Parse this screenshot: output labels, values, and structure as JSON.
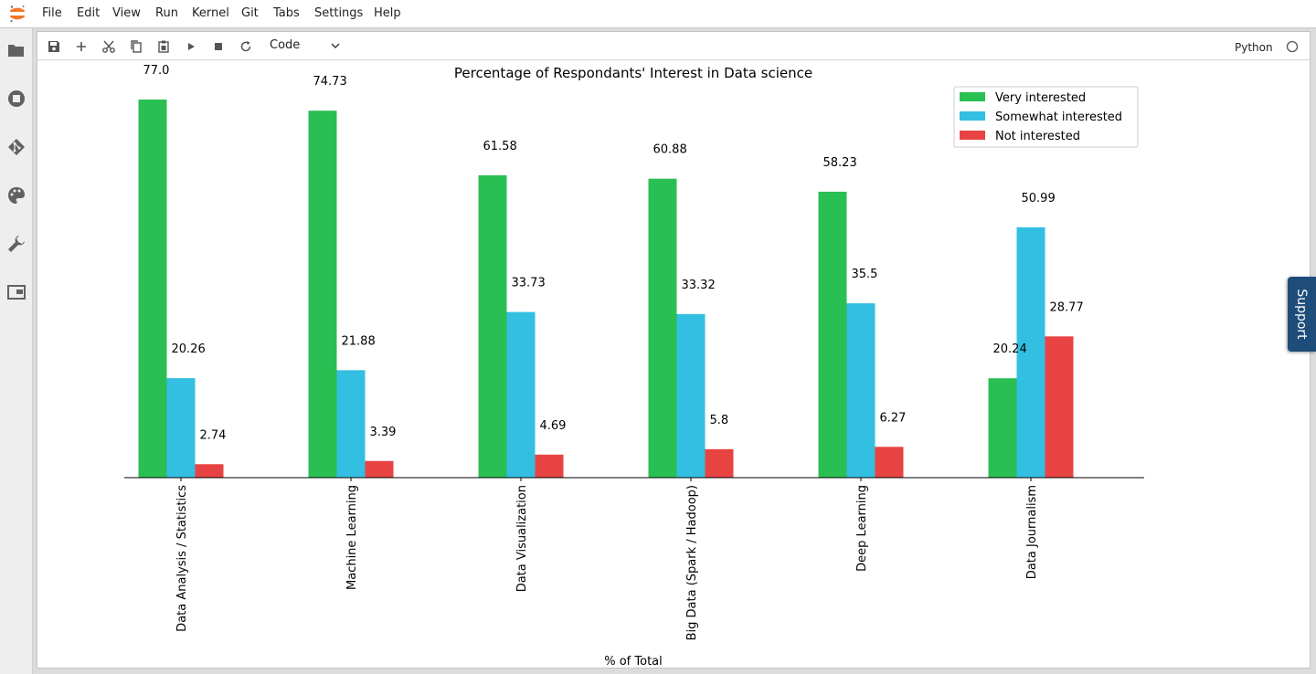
{
  "menu": {
    "items": [
      "File",
      "Edit",
      "View",
      "Run",
      "Kernel",
      "Git",
      "Tabs",
      "Settings",
      "Help"
    ]
  },
  "sidebar": {
    "icons": [
      "folder-icon",
      "running-icon",
      "git-icon",
      "palette-icon",
      "wrench-icon",
      "tabs-icon"
    ]
  },
  "toolbar": {
    "cell_type": "Code",
    "kernel_name": "Python"
  },
  "support_tab": {
    "label": "Support"
  },
  "colors": {
    "very": "#2abf52",
    "somewhat": "#33bfe2",
    "not": "#e84343",
    "sidebar_bg": "#eeeeee",
    "support_bg": "#1e4d7a"
  },
  "chart_data": {
    "type": "bar",
    "title": "Percentage of Respondants' Interest in Data science",
    "xlabel": "% of Total",
    "ylabel": "",
    "categories": [
      "Data Analysis / Statistics",
      "Machine Learning",
      "Data Visualization",
      "Big Data (Spark / Hadoop)",
      "Deep Learning",
      "Data Journalism"
    ],
    "series": [
      {
        "name": "Very interested",
        "values": [
          77.0,
          74.73,
          61.58,
          60.88,
          58.23,
          20.24
        ]
      },
      {
        "name": "Somewhat interested",
        "values": [
          20.26,
          21.88,
          33.73,
          33.32,
          35.5,
          50.99
        ]
      },
      {
        "name": "Not interested",
        "values": [
          2.74,
          3.39,
          4.69,
          5.8,
          6.27,
          28.77
        ]
      }
    ],
    "value_labels": [
      [
        "77.0",
        "74.73",
        "61.58",
        "60.88",
        "58.23",
        "20.24"
      ],
      [
        "20.26",
        "21.88",
        "33.73",
        "33.32",
        "35.5",
        "50.99"
      ],
      [
        "2.74",
        "3.39",
        "4.69",
        "5.8",
        "6.27",
        "28.77"
      ]
    ],
    "ylim": [
      0,
      80
    ],
    "legend_position": "top-right",
    "grid": false
  }
}
